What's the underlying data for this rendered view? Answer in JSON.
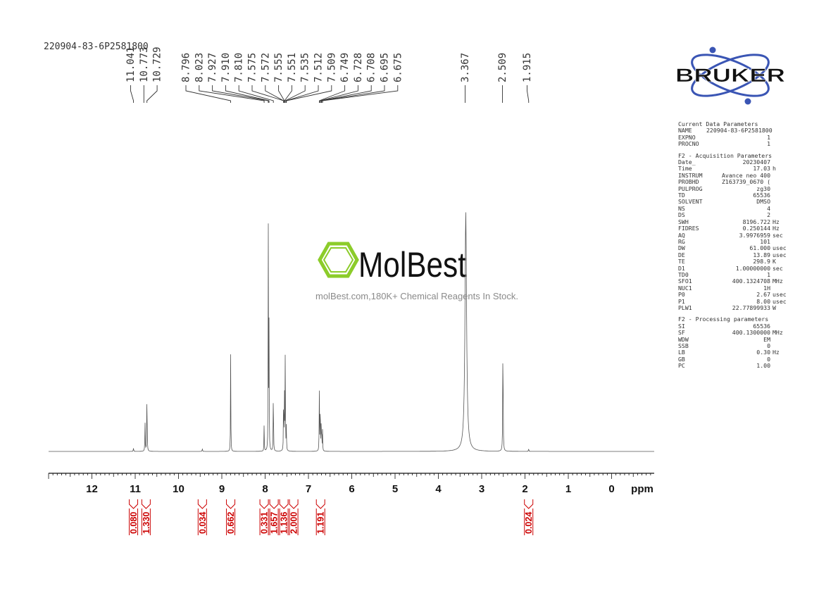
{
  "sample_id": "220904-83-6P2581800",
  "watermark": {
    "brand": "MolBest",
    "caption": "molBest.com,180K+ Chemical Reagents In Stock."
  },
  "logo": {
    "text": "BRUKER"
  },
  "colors": {
    "spectrum": "#555555",
    "integral": "#cc0000",
    "watermark_green": "#8ccc2a"
  },
  "parameters": {
    "groups": [
      {
        "header": "Current Data Parameters",
        "rows": [
          {
            "k": "NAME",
            "v": "220904-83-6P2581800",
            "u": ""
          },
          {
            "k": "EXPNO",
            "v": "1",
            "u": ""
          },
          {
            "k": "PROCNO",
            "v": "1",
            "u": ""
          }
        ]
      },
      {
        "header": "F2 - Acquisition Parameters",
        "rows": [
          {
            "k": "Date_",
            "v": "20230407",
            "u": ""
          },
          {
            "k": "Time",
            "v": "17.03",
            "u": "h"
          },
          {
            "k": "INSTRUM",
            "v": "Avance neo 400",
            "u": ""
          },
          {
            "k": "PROBHD",
            "v": "Z163739_0670 (",
            "u": ""
          },
          {
            "k": "PULPROG",
            "v": "zg30",
            "u": ""
          },
          {
            "k": "TD",
            "v": "65536",
            "u": ""
          },
          {
            "k": "SOLVENT",
            "v": "DMSO",
            "u": ""
          },
          {
            "k": "NS",
            "v": "4",
            "u": ""
          },
          {
            "k": "DS",
            "v": "2",
            "u": ""
          },
          {
            "k": "SWH",
            "v": "8196.722",
            "u": "Hz"
          },
          {
            "k": "FIDRES",
            "v": "0.250144",
            "u": "Hz"
          },
          {
            "k": "AQ",
            "v": "3.9976959",
            "u": "sec"
          },
          {
            "k": "RG",
            "v": "101",
            "u": ""
          },
          {
            "k": "DW",
            "v": "61.000",
            "u": "usec"
          },
          {
            "k": "DE",
            "v": "13.89",
            "u": "usec"
          },
          {
            "k": "TE",
            "v": "298.9",
            "u": "K"
          },
          {
            "k": "D1",
            "v": "1.00000000",
            "u": "sec"
          },
          {
            "k": "TD0",
            "v": "1",
            "u": ""
          },
          {
            "k": "SFO1",
            "v": "400.1324708",
            "u": "MHz"
          },
          {
            "k": "NUC1",
            "v": "1H",
            "u": ""
          },
          {
            "k": "P0",
            "v": "2.67",
            "u": "usec"
          },
          {
            "k": "P1",
            "v": "8.00",
            "u": "usec"
          },
          {
            "k": "PLW1",
            "v": "22.77899933",
            "u": "W"
          }
        ]
      },
      {
        "header": "F2 - Processing parameters",
        "rows": [
          {
            "k": "SI",
            "v": "65536",
            "u": ""
          },
          {
            "k": "SF",
            "v": "400.1300000",
            "u": "MHz"
          },
          {
            "k": "WDW",
            "v": "EM",
            "u": ""
          },
          {
            "k": "SSB",
            "v": "0",
            "u": ""
          },
          {
            "k": "LB",
            "v": "0.30",
            "u": "Hz"
          },
          {
            "k": "GB",
            "v": "0",
            "u": ""
          },
          {
            "k": "PC",
            "v": "1.00",
            "u": ""
          }
        ]
      }
    ]
  },
  "chart_data": {
    "type": "line",
    "title": "",
    "xlabel": "ppm",
    "ylabel": "",
    "xlim": [
      13.0,
      -1.0
    ],
    "x_reversed": true,
    "xticks": [
      "12",
      "11",
      "10",
      "9",
      "8",
      "7",
      "6",
      "5",
      "4",
      "3",
      "2",
      "1",
      "0"
    ],
    "tick_values": [
      12,
      11,
      10,
      9,
      8,
      7,
      6,
      5,
      4,
      3,
      2,
      1,
      0
    ],
    "peaks": [
      {
        "ppm": 11.04,
        "h": 0.012,
        "w": 0.006
      },
      {
        "ppm": 10.773,
        "h": 0.11,
        "w": 0.005
      },
      {
        "ppm": 10.729,
        "h": 0.235,
        "w": 0.005
      },
      {
        "ppm": 9.45,
        "h": 0.012,
        "w": 0.005
      },
      {
        "ppm": 8.796,
        "h": 0.39,
        "w": 0.004
      },
      {
        "ppm": 8.023,
        "h": 0.11,
        "w": 0.004
      },
      {
        "ppm": 7.927,
        "h": 0.86,
        "w": 0.004
      },
      {
        "ppm": 7.91,
        "h": 0.48,
        "w": 0.004
      },
      {
        "ppm": 7.81,
        "h": 0.29,
        "w": 0.004
      },
      {
        "ppm": 7.575,
        "h": 0.15,
        "w": 0.004
      },
      {
        "ppm": 7.572,
        "h": 0.1,
        "w": 0.004
      },
      {
        "ppm": 7.555,
        "h": 0.14,
        "w": 0.004
      },
      {
        "ppm": 7.551,
        "h": 0.12,
        "w": 0.004
      },
      {
        "ppm": 7.535,
        "h": 0.41,
        "w": 0.004
      },
      {
        "ppm": 7.512,
        "h": 0.06,
        "w": 0.004
      },
      {
        "ppm": 7.509,
        "h": 0.05,
        "w": 0.004
      },
      {
        "ppm": 6.749,
        "h": 0.24,
        "w": 0.004
      },
      {
        "ppm": 6.728,
        "h": 0.24,
        "w": 0.004
      },
      {
        "ppm": 6.708,
        "h": 0.09,
        "w": 0.004
      },
      {
        "ppm": 6.695,
        "h": 0.1,
        "w": 0.004
      },
      {
        "ppm": 6.675,
        "h": 0.08,
        "w": 0.004
      },
      {
        "ppm": 3.367,
        "h": 0.93,
        "w": 0.022
      },
      {
        "ppm": 2.509,
        "h": 0.48,
        "w": 0.005
      },
      {
        "ppm": 1.915,
        "h": 0.014,
        "w": 0.004
      }
    ],
    "peak_labels": {
      "groups": [
        {
          "labels": [
            "11.041",
            "10.773",
            "10.729"
          ],
          "targets": [
            11.04,
            10.773,
            10.729
          ]
        },
        {
          "labels": [
            "8.796",
            "8.023",
            "7.927",
            "7.910",
            "7.810",
            "7.575",
            "7.572",
            "7.555",
            "7.551",
            "7.535",
            "7.512",
            "7.509",
            "6.749",
            "6.728",
            "6.708",
            "6.695",
            "6.675"
          ],
          "targets": [
            8.796,
            8.023,
            7.927,
            7.91,
            7.81,
            7.575,
            7.572,
            7.555,
            7.551,
            7.535,
            7.512,
            7.509,
            6.749,
            6.728,
            6.708,
            6.695,
            6.675
          ]
        },
        {
          "labels": [
            "3.367"
          ],
          "targets": [
            3.367
          ]
        },
        {
          "labels": [
            "2.509"
          ],
          "targets": [
            2.509
          ]
        },
        {
          "labels": [
            "1.915"
          ],
          "targets": [
            1.915
          ]
        }
      ]
    },
    "integrals": [
      {
        "value": "0.080",
        "ppm": 11.04
      },
      {
        "value": "1.330",
        "ppm": 10.75
      },
      {
        "value": "0.034",
        "ppm": 9.45
      },
      {
        "value": "0.662",
        "ppm": 8.796
      },
      {
        "value": "0.331",
        "ppm": 8.023
      },
      {
        "value": "1.657",
        "ppm": 7.92
      },
      {
        "value": "1.136",
        "ppm": 7.81
      },
      {
        "value": "2.000",
        "ppm": 7.54
      },
      {
        "value": "1.191",
        "ppm": 6.72
      },
      {
        "value": "0.024",
        "ppm": 1.915
      }
    ]
  }
}
